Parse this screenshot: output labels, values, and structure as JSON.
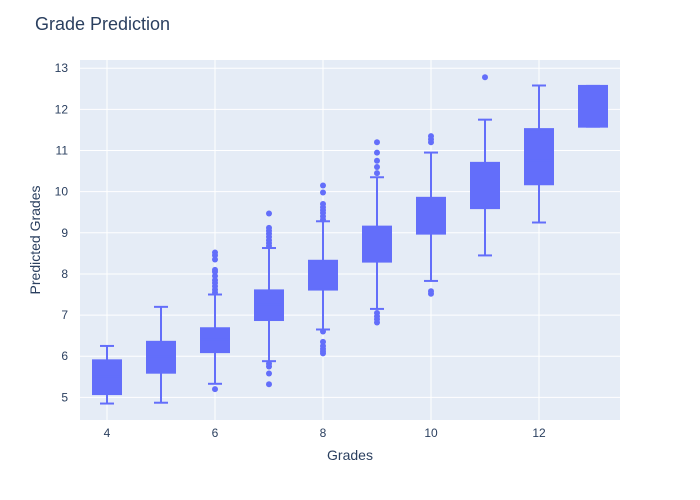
{
  "chart_data": {
    "type": "box",
    "title": "Grade Prediction",
    "xlabel": "Grades",
    "ylabel": "Predicted Grades",
    "xlim": [
      3.5,
      13.5
    ],
    "ylim": [
      4.45,
      13.2
    ],
    "x_ticks": [
      4,
      6,
      8,
      10,
      12
    ],
    "y_ticks": [
      5,
      6,
      7,
      8,
      9,
      10,
      11,
      12,
      13
    ],
    "grid": true,
    "colors": {
      "box": "#636efa",
      "plot_bg": "#e5ecf6",
      "grid": "#ffffff",
      "text": "#2a3f5f"
    },
    "boxes": [
      {
        "x": 4,
        "min": 4.85,
        "q1": 5.08,
        "median": 5.5,
        "q3": 5.9,
        "max": 6.25,
        "outliers": []
      },
      {
        "x": 5,
        "min": 4.87,
        "q1": 5.6,
        "median": 6.0,
        "q3": 6.35,
        "max": 7.2,
        "outliers": []
      },
      {
        "x": 6,
        "min": 5.33,
        "q1": 6.1,
        "median": 6.4,
        "q3": 6.68,
        "max": 7.5,
        "outliers": [
          5.2,
          7.55,
          7.62,
          7.7,
          7.78,
          7.85,
          7.95,
          8.05,
          8.1,
          8.35,
          8.45,
          8.52
        ]
      },
      {
        "x": 7,
        "min": 5.88,
        "q1": 6.88,
        "median": 7.25,
        "q3": 7.6,
        "max": 8.63,
        "outliers": [
          5.32,
          5.58,
          5.75,
          5.82,
          8.68,
          8.75,
          8.82,
          8.9,
          8.98,
          9.05,
          9.12,
          9.47
        ]
      },
      {
        "x": 8,
        "min": 6.65,
        "q1": 7.62,
        "median": 7.95,
        "q3": 8.32,
        "max": 9.28,
        "outliers": [
          6.07,
          6.12,
          6.18,
          6.25,
          6.35,
          6.6,
          9.32,
          9.4,
          9.48,
          9.55,
          9.62,
          9.7,
          9.98,
          10.15
        ]
      },
      {
        "x": 9,
        "min": 7.15,
        "q1": 8.3,
        "median": 8.72,
        "q3": 9.15,
        "max": 10.35,
        "outliers": [
          6.82,
          6.9,
          6.97,
          7.05,
          10.45,
          10.6,
          10.75,
          10.95,
          11.2
        ]
      },
      {
        "x": 10,
        "min": 7.83,
        "q1": 8.98,
        "median": 9.4,
        "q3": 9.85,
        "max": 10.95,
        "outliers": [
          7.52,
          7.58,
          11.2,
          11.27,
          11.35
        ]
      },
      {
        "x": 11,
        "min": 8.45,
        "q1": 9.6,
        "median": 10.05,
        "q3": 10.7,
        "max": 11.75,
        "outliers": [
          12.78
        ]
      },
      {
        "x": 12,
        "min": 9.25,
        "q1": 10.18,
        "median": 10.75,
        "q3": 11.52,
        "max": 12.58,
        "outliers": []
      },
      {
        "x": 13,
        "min": 11.58,
        "q1": 11.58,
        "median": 12.2,
        "q3": 12.57,
        "max": 12.57,
        "outliers": []
      }
    ]
  }
}
